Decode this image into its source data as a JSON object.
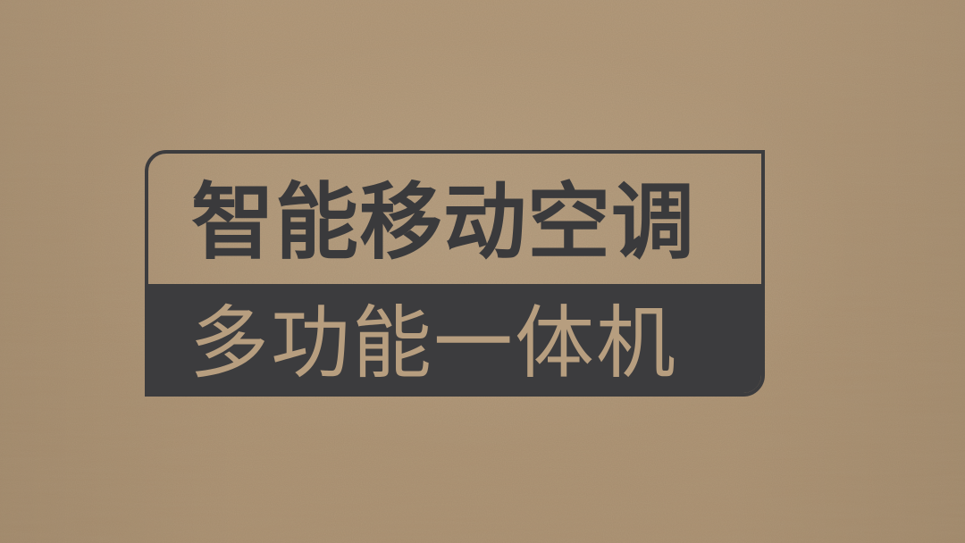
{
  "scene": {
    "subject": "printed-label-on-cardboard",
    "colors": {
      "cardboard": "#b29878",
      "ink": "#3c3c3e"
    }
  },
  "label": {
    "line1": "智能移动空调",
    "line2": "多功能一体机"
  }
}
